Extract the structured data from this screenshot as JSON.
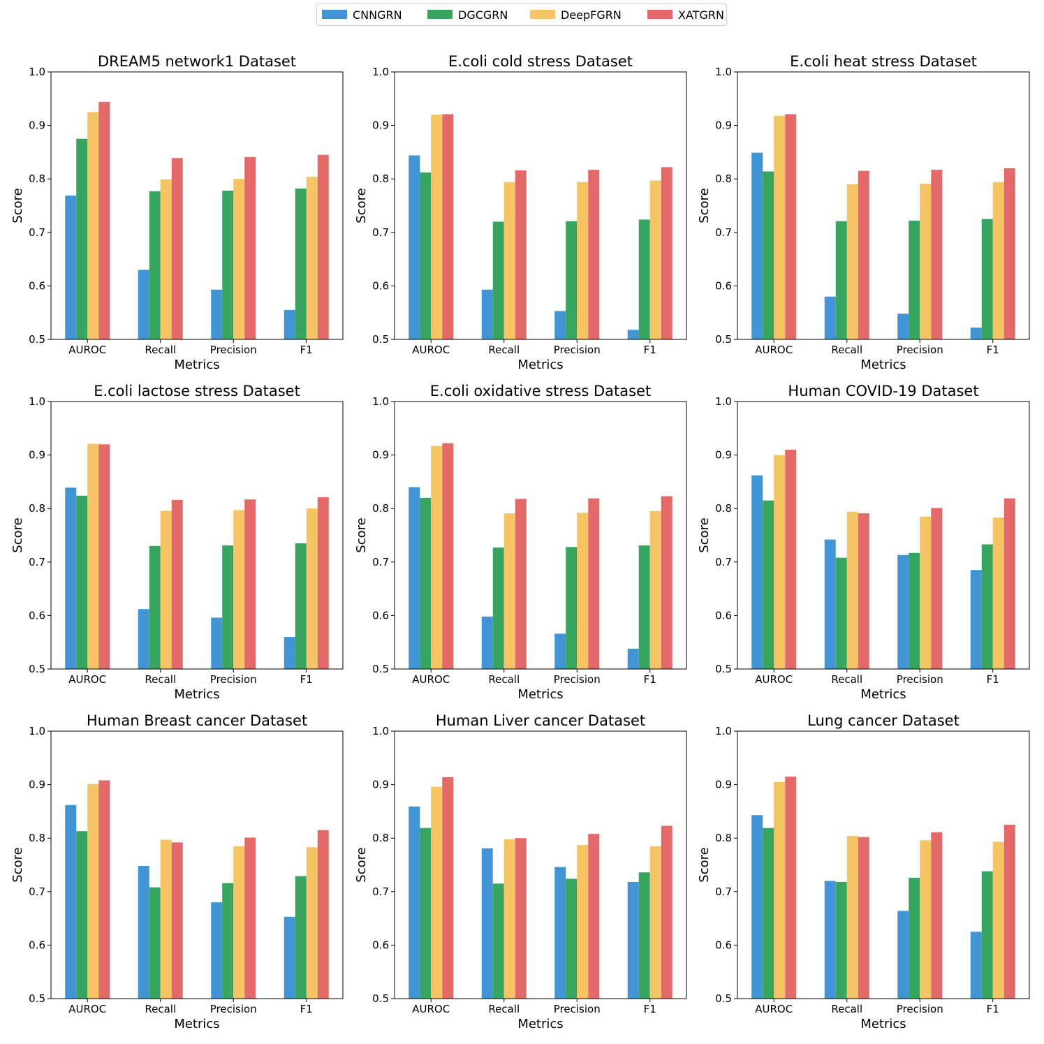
{
  "colors": {
    "CNNGRN": "#4195d4",
    "DGCGRN": "#37a45f",
    "DeepFGRN": "#f5c465",
    "XATGRN": "#e36a69"
  },
  "legend": [
    "CNNGRN",
    "DGCGRN",
    "DeepFGRN",
    "XATGRN"
  ],
  "chart_data": [
    {
      "type": "bar",
      "title": "DREAM5 network1 Dataset",
      "xlabel": "Metrics",
      "ylabel": "Score",
      "ylim": [
        0.5,
        1.0
      ],
      "yticks": [
        "0.5",
        "0.6",
        "0.7",
        "0.8",
        "0.9",
        "1.0"
      ],
      "categories": [
        "AUROC",
        "Recall",
        "Precision",
        "F1"
      ],
      "series": [
        {
          "name": "CNNGRN",
          "values": [
            0.769,
            0.63,
            0.593,
            0.555
          ]
        },
        {
          "name": "DGCGRN",
          "values": [
            0.875,
            0.777,
            0.778,
            0.782
          ]
        },
        {
          "name": "DeepFGRN",
          "values": [
            0.925,
            0.799,
            0.8,
            0.804
          ]
        },
        {
          "name": "XATGRN",
          "values": [
            0.944,
            0.839,
            0.841,
            0.845
          ]
        }
      ]
    },
    {
      "type": "bar",
      "title": "E.coli cold stress Dataset",
      "xlabel": "Metrics",
      "ylabel": "Score",
      "ylim": [
        0.5,
        1.0
      ],
      "yticks": [
        "0.5",
        "0.6",
        "0.7",
        "0.8",
        "0.9",
        "1.0"
      ],
      "categories": [
        "AUROC",
        "Recall",
        "Precision",
        "F1"
      ],
      "series": [
        {
          "name": "CNNGRN",
          "values": [
            0.844,
            0.593,
            0.553,
            0.518
          ]
        },
        {
          "name": "DGCGRN",
          "values": [
            0.812,
            0.72,
            0.721,
            0.724
          ]
        },
        {
          "name": "DeepFGRN",
          "values": [
            0.92,
            0.794,
            0.794,
            0.797
          ]
        },
        {
          "name": "XATGRN",
          "values": [
            0.921,
            0.816,
            0.817,
            0.822
          ]
        }
      ]
    },
    {
      "type": "bar",
      "title": "E.coli heat stress Dataset",
      "xlabel": "Metrics",
      "ylabel": "Score",
      "ylim": [
        0.5,
        1.0
      ],
      "yticks": [
        "0.5",
        "0.6",
        "0.7",
        "0.8",
        "0.9",
        "1.0"
      ],
      "categories": [
        "AUROC",
        "Recall",
        "Precision",
        "F1"
      ],
      "series": [
        {
          "name": "CNNGRN",
          "values": [
            0.849,
            0.58,
            0.548,
            0.522
          ]
        },
        {
          "name": "DGCGRN",
          "values": [
            0.814,
            0.721,
            0.722,
            0.725
          ]
        },
        {
          "name": "DeepFGRN",
          "values": [
            0.918,
            0.79,
            0.791,
            0.794
          ]
        },
        {
          "name": "XATGRN",
          "values": [
            0.921,
            0.815,
            0.817,
            0.82
          ]
        }
      ]
    },
    {
      "type": "bar",
      "title": "E.coli lactose stress Dataset",
      "xlabel": "Metrics",
      "ylabel": "Score",
      "ylim": [
        0.5,
        1.0
      ],
      "yticks": [
        "0.5",
        "0.6",
        "0.7",
        "0.8",
        "0.9",
        "1.0"
      ],
      "categories": [
        "AUROC",
        "Recall",
        "Precision",
        "F1"
      ],
      "series": [
        {
          "name": "CNNGRN",
          "values": [
            0.839,
            0.612,
            0.596,
            0.56
          ]
        },
        {
          "name": "DGCGRN",
          "values": [
            0.824,
            0.73,
            0.731,
            0.735
          ]
        },
        {
          "name": "DeepFGRN",
          "values": [
            0.921,
            0.796,
            0.797,
            0.8
          ]
        },
        {
          "name": "XATGRN",
          "values": [
            0.92,
            0.816,
            0.817,
            0.821
          ]
        }
      ]
    },
    {
      "type": "bar",
      "title": "E.coli oxidative stress Dataset",
      "xlabel": "Metrics",
      "ylabel": "Score",
      "ylim": [
        0.5,
        1.0
      ],
      "yticks": [
        "0.5",
        "0.6",
        "0.7",
        "0.8",
        "0.9",
        "1.0"
      ],
      "categories": [
        "AUROC",
        "Recall",
        "Precision",
        "F1"
      ],
      "series": [
        {
          "name": "CNNGRN",
          "values": [
            0.84,
            0.598,
            0.566,
            0.538
          ]
        },
        {
          "name": "DGCGRN",
          "values": [
            0.82,
            0.727,
            0.728,
            0.731
          ]
        },
        {
          "name": "DeepFGRN",
          "values": [
            0.917,
            0.791,
            0.792,
            0.795
          ]
        },
        {
          "name": "XATGRN",
          "values": [
            0.922,
            0.818,
            0.819,
            0.823
          ]
        }
      ]
    },
    {
      "type": "bar",
      "title": "Human COVID-19 Dataset",
      "xlabel": "Metrics",
      "ylabel": "Score",
      "ylim": [
        0.5,
        1.0
      ],
      "yticks": [
        "0.5",
        "0.6",
        "0.7",
        "0.8",
        "0.9",
        "1.0"
      ],
      "categories": [
        "AUROC",
        "Recall",
        "Precision",
        "F1"
      ],
      "series": [
        {
          "name": "CNNGRN",
          "values": [
            0.862,
            0.742,
            0.713,
            0.685
          ]
        },
        {
          "name": "DGCGRN",
          "values": [
            0.815,
            0.708,
            0.717,
            0.733
          ]
        },
        {
          "name": "DeepFGRN",
          "values": [
            0.9,
            0.794,
            0.785,
            0.783
          ]
        },
        {
          "name": "XATGRN",
          "values": [
            0.91,
            0.791,
            0.801,
            0.819
          ]
        }
      ]
    },
    {
      "type": "bar",
      "title": "Human Breast cancer Dataset",
      "xlabel": "Metrics",
      "ylabel": "Score",
      "ylim": [
        0.5,
        1.0
      ],
      "yticks": [
        "0.5",
        "0.6",
        "0.7",
        "0.8",
        "0.9",
        "1.0"
      ],
      "categories": [
        "AUROC",
        "Recall",
        "Precision",
        "F1"
      ],
      "series": [
        {
          "name": "CNNGRN",
          "values": [
            0.862,
            0.748,
            0.68,
            0.653
          ]
        },
        {
          "name": "DGCGRN",
          "values": [
            0.813,
            0.708,
            0.716,
            0.729
          ]
        },
        {
          "name": "DeepFGRN",
          "values": [
            0.901,
            0.797,
            0.785,
            0.783
          ]
        },
        {
          "name": "XATGRN",
          "values": [
            0.908,
            0.792,
            0.801,
            0.815
          ]
        }
      ]
    },
    {
      "type": "bar",
      "title": "Human Liver cancer Dataset",
      "xlabel": "Metrics",
      "ylabel": "Score",
      "ylim": [
        0.5,
        1.0
      ],
      "yticks": [
        "0.5",
        "0.6",
        "0.7",
        "0.8",
        "0.9",
        "1.0"
      ],
      "categories": [
        "AUROC",
        "Recall",
        "Precision",
        "F1"
      ],
      "series": [
        {
          "name": "CNNGRN",
          "values": [
            0.859,
            0.781,
            0.746,
            0.718
          ]
        },
        {
          "name": "DGCGRN",
          "values": [
            0.819,
            0.715,
            0.724,
            0.736
          ]
        },
        {
          "name": "DeepFGRN",
          "values": [
            0.896,
            0.798,
            0.787,
            0.785
          ]
        },
        {
          "name": "XATGRN",
          "values": [
            0.914,
            0.8,
            0.808,
            0.823
          ]
        }
      ]
    },
    {
      "type": "bar",
      "title": "Lung cancer Dataset",
      "xlabel": "Metrics",
      "ylabel": "Score",
      "ylim": [
        0.5,
        1.0
      ],
      "yticks": [
        "0.5",
        "0.6",
        "0.7",
        "0.8",
        "0.9",
        "1.0"
      ],
      "categories": [
        "AUROC",
        "Recall",
        "Precision",
        "F1"
      ],
      "series": [
        {
          "name": "CNNGRN",
          "values": [
            0.843,
            0.72,
            0.664,
            0.625
          ]
        },
        {
          "name": "DGCGRN",
          "values": [
            0.819,
            0.718,
            0.726,
            0.738
          ]
        },
        {
          "name": "DeepFGRN",
          "values": [
            0.905,
            0.804,
            0.796,
            0.793
          ]
        },
        {
          "name": "XATGRN",
          "values": [
            0.915,
            0.802,
            0.811,
            0.825
          ]
        }
      ]
    }
  ]
}
